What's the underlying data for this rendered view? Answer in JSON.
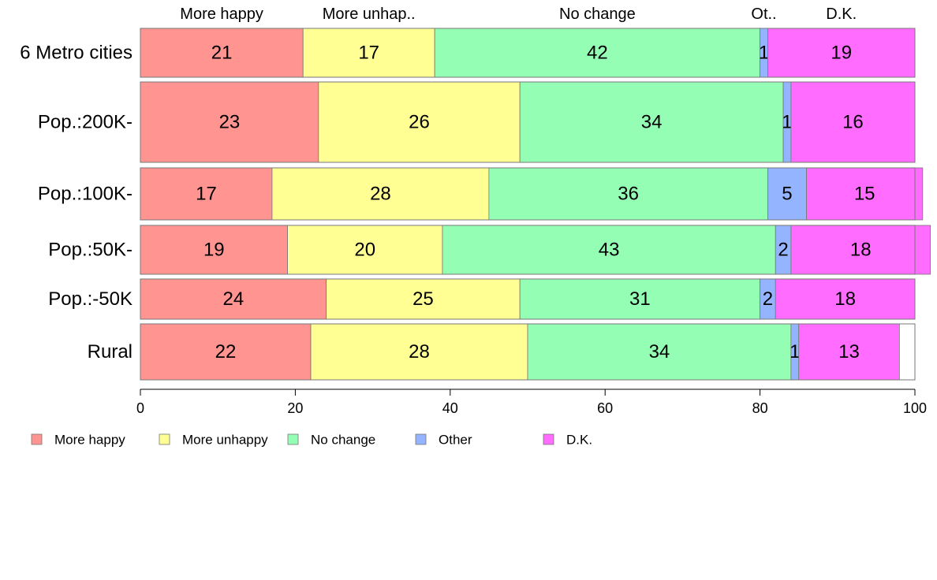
{
  "chart_data": {
    "type": "bar",
    "orientation": "horizontal",
    "stacked": true,
    "categories": [
      "6 Metro cities",
      "Pop.:200K-",
      "Pop.:100K-",
      "Pop.:50K-",
      "Pop.:-50K",
      "Rural"
    ],
    "series": [
      {
        "name": "More happy",
        "values": [
          21,
          23,
          17,
          19,
          24,
          22
        ],
        "color": "#ff9490"
      },
      {
        "name": "More unhappy",
        "values": [
          17,
          26,
          28,
          20,
          25,
          28
        ],
        "color": "#ffff94"
      },
      {
        "name": "No change",
        "values": [
          42,
          34,
          36,
          43,
          31,
          34
        ],
        "color": "#94ffb4"
      },
      {
        "name": "Other",
        "values": [
          1,
          1,
          5,
          2,
          2,
          1
        ],
        "color": "#94b4ff"
      },
      {
        "name": "D.K.",
        "values": [
          19,
          16,
          15,
          18,
          18,
          13
        ],
        "color": "#ff6cff"
      }
    ],
    "top_labels": [
      "More happy",
      "More unhap..",
      "No change",
      "Ot..",
      "D.K."
    ],
    "xlim": [
      0,
      100
    ],
    "xticks": [
      0,
      20,
      40,
      60,
      80,
      100
    ],
    "legend_position": "bottom-left",
    "grid": false
  }
}
